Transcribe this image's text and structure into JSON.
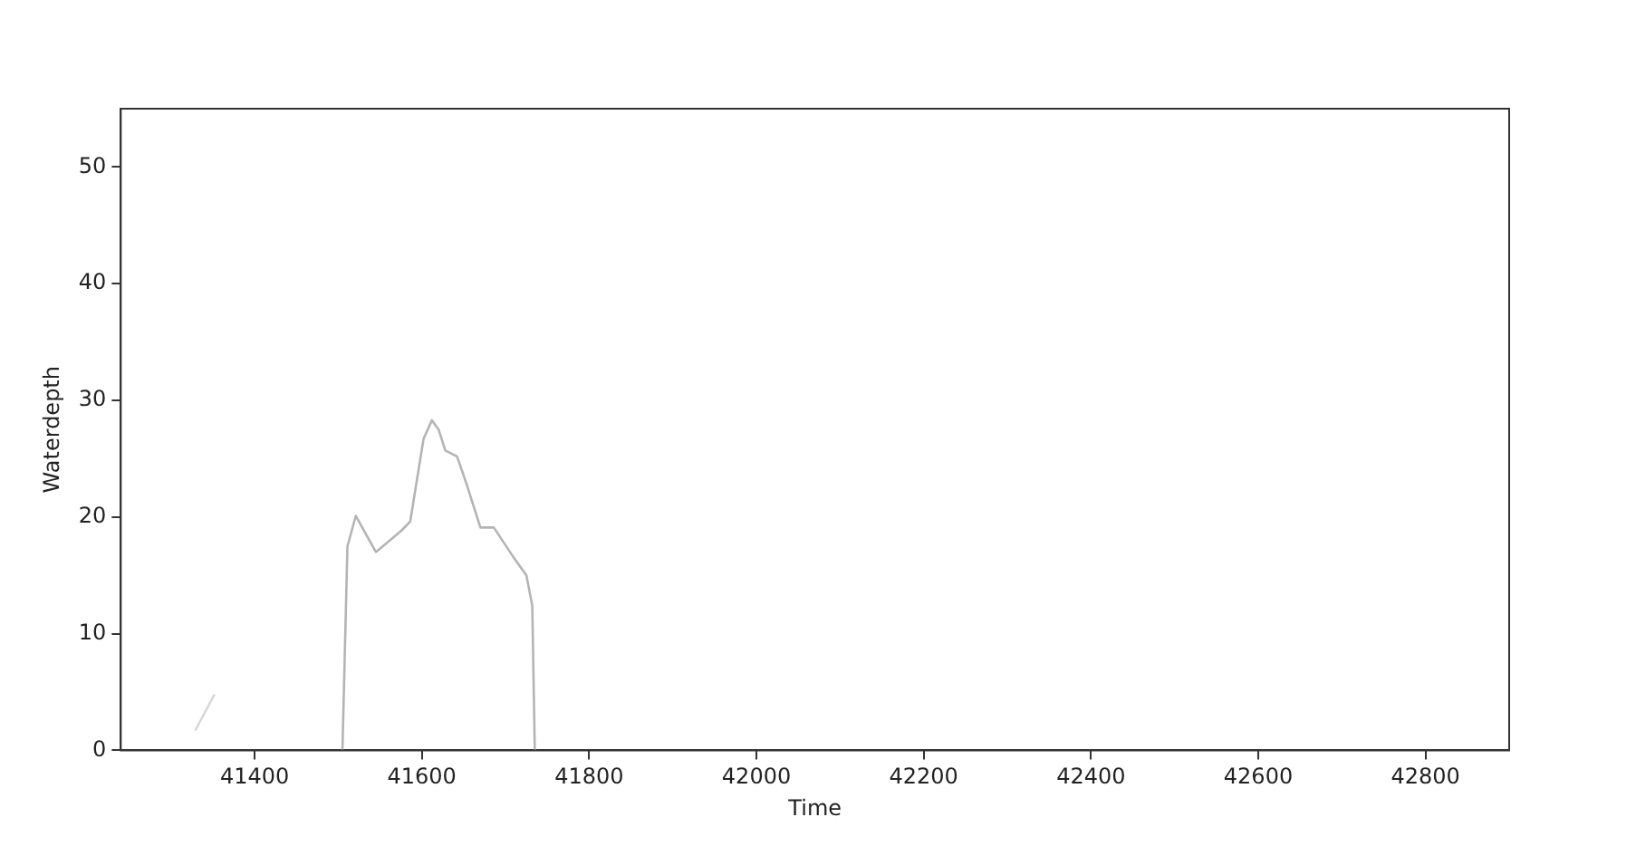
{
  "chart_data": {
    "type": "line",
    "xlabel": "Time",
    "ylabel": "Waterdepth",
    "xlim": [
      41240,
      42900
    ],
    "ylim": [
      0,
      55
    ],
    "xticks": [
      41400,
      41600,
      41800,
      42000,
      42200,
      42400,
      42600,
      42800
    ],
    "yticks": [
      0,
      10,
      20,
      30,
      40,
      50
    ],
    "grid": false,
    "legend": false,
    "marker": "none",
    "line_style": "solid",
    "series": [
      {
        "color": "#b4b4b4",
        "x": [
          41505,
          41511,
          41521,
          41545,
          41575,
          41586,
          41602,
          41612,
          41620,
          41628,
          41642,
          41654,
          41670,
          41686,
          41710,
          41725,
          41732,
          41735
        ],
        "values": [
          0,
          17.5,
          20.1,
          17.0,
          18.8,
          19.6,
          26.7,
          28.3,
          27.5,
          25.7,
          25.2,
          22.7,
          19.1,
          19.1,
          16.5,
          15.0,
          12.4,
          0
        ]
      },
      {
        "color": "#d8d8d8",
        "x": [
          41329,
          41352
        ],
        "values": [
          1.7,
          4.8
        ]
      }
    ]
  }
}
